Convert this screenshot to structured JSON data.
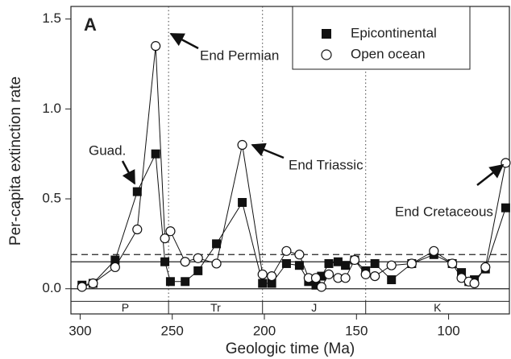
{
  "chart_data": {
    "type": "line",
    "panel_label": "A",
    "x_label": "Geologic time (Ma)",
    "y_label": "Per-capita extinction rate",
    "xlim": [
      305,
      67
    ],
    "ylim": [
      -0.14,
      1.57
    ],
    "xticks": [
      300,
      250,
      200,
      150,
      100
    ],
    "yticks": [
      {
        "value": 0,
        "label": "0.0"
      },
      {
        "value": 0.5,
        "label": "0.5"
      },
      {
        "value": 1,
        "label": "1.0"
      },
      {
        "value": 1.5,
        "label": "1.5"
      }
    ],
    "legend": "top-right",
    "series": [
      {
        "name": "Epicontinental",
        "marker": "square",
        "color": "#111111",
        "x": [
          299,
          293,
          281,
          269,
          259,
          254,
          251,
          243,
          236,
          226,
          212,
          201,
          196,
          188,
          181,
          176,
          172,
          169,
          165,
          160,
          156,
          151,
          145,
          140,
          131,
          120,
          108,
          98,
          93,
          89,
          86,
          80,
          69
        ],
        "values": [
          0.02,
          0.03,
          0.16,
          0.54,
          0.75,
          0.15,
          0.04,
          0.04,
          0.1,
          0.25,
          0.48,
          0.03,
          0.03,
          0.14,
          0.13,
          0.04,
          0.02,
          0.07,
          0.14,
          0.15,
          0.13,
          0.16,
          0.1,
          0.14,
          0.05,
          0.14,
          0.19,
          0.14,
          0.09,
          0.04,
          0.05,
          0.11,
          0.45
        ]
      },
      {
        "name": "Open ocean",
        "marker": "circle",
        "color": "#111111",
        "x": [
          299,
          293,
          281,
          269,
          259,
          254,
          251,
          243,
          236,
          226,
          212,
          201,
          196,
          188,
          181,
          176,
          172,
          169,
          165,
          160,
          156,
          151,
          145,
          140,
          131,
          120,
          108,
          98,
          93,
          89,
          86,
          80,
          69
        ],
        "values": [
          0.01,
          0.03,
          0.12,
          0.33,
          1.35,
          0.28,
          0.32,
          0.15,
          0.17,
          0.14,
          0.8,
          0.08,
          0.07,
          0.21,
          0.19,
          0.06,
          0.06,
          0.01,
          0.08,
          0.06,
          0.06,
          0.16,
          0.08,
          0.07,
          0.13,
          0.14,
          0.21,
          0.14,
          0.06,
          0.04,
          0.03,
          0.12,
          0.7
        ]
      }
    ],
    "hlines": [
      {
        "value": 0.15,
        "style": "solid"
      },
      {
        "value": 0.19,
        "style": "dashed"
      },
      {
        "value": 0,
        "style": "solid"
      }
    ],
    "boundaries": [
      252,
      201,
      145
    ],
    "periods": [
      {
        "label": "P",
        "start": 299,
        "end": 252
      },
      {
        "label": "Tr",
        "start": 252,
        "end": 201
      },
      {
        "label": "J",
        "start": 201,
        "end": 145
      },
      {
        "label": "K",
        "start": 145,
        "end": 66
      }
    ],
    "annotations": [
      "End Permian",
      "End Triassic",
      "End Cretaceous",
      "Guad."
    ]
  }
}
